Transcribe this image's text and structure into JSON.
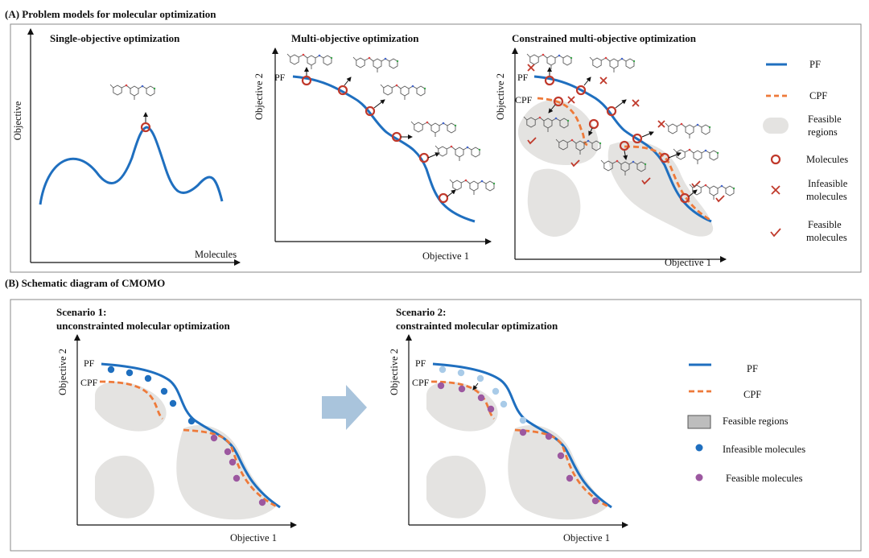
{
  "section_a": {
    "title": "(A) Problem models for molecular optimization",
    "panels": {
      "single": {
        "title": "Single-objective optimization",
        "ylabel": "Objective",
        "xlabel": "Molecules"
      },
      "multi": {
        "title": "Multi-objective optimization",
        "ylabel": "Objective 2",
        "xlabel": "Objective 1",
        "pf_label": "PF"
      },
      "constrained": {
        "title": "Constrained multi-objective optimization",
        "ylabel": "Objective 2",
        "xlabel": "Objective 1",
        "pf_label": "PF",
        "cpf_label": "CPF"
      }
    },
    "legend": {
      "pf": "PF",
      "cpf": "CPF",
      "feasible_regions_line1": "Feasible",
      "feasible_regions_line2": "regions",
      "molecules": "Molecules",
      "infeasible_line1": "Infeasible",
      "infeasible_line2": "molecules",
      "feasible_line1": "Feasible",
      "feasible_line2": "molecules"
    }
  },
  "section_b": {
    "title": "(B) Schematic diagram of CMOMO",
    "scenario1": {
      "title_line1": "Scenario 1:",
      "title_line2": "unconstrainted molecular optimization",
      "ylabel": "Objective 2",
      "xlabel": "Objective 1",
      "pf_label": "PF",
      "cpf_label": "CPF"
    },
    "scenario2": {
      "title_line1": "Scenario 2:",
      "title_line2": "constrainted molecular optimization",
      "ylabel": "Objective 2",
      "xlabel": "Objective 1",
      "pf_label": "PF",
      "cpf_label": "CPF"
    },
    "legend": {
      "pf": "PF",
      "cpf": "CPF",
      "feasible_regions": "Feasible regions",
      "infeasible_molecules": "Infeasible molecules",
      "feasible_molecules": "Feasible molecules"
    }
  },
  "colors": {
    "pf_line": "#1f6fbf",
    "cpf_line": "#ee7a3a",
    "feasible_region": "#e4e3e1",
    "molecule_marker": "#c0392b",
    "infeasible_dot": "#1f6fbf",
    "infeasible_dot_light": "#a9cbe8",
    "feasible_dot": "#9c58a0",
    "arrow": "#a9c4dc",
    "frame": "#8a8a8a"
  }
}
